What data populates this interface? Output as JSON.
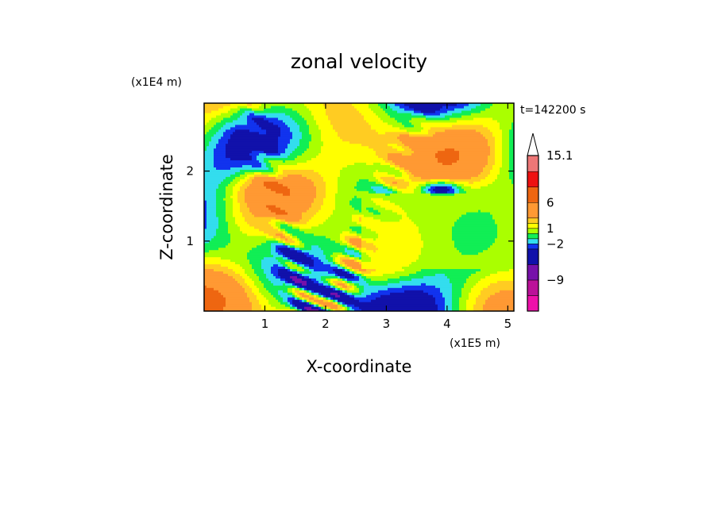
{
  "chart_data": {
    "type": "heatmap",
    "title": "zonal velocity",
    "xlabel": "X-coordinate",
    "ylabel": "Z-coordinate",
    "x_scale_note": "(x1E5 m)",
    "y_scale_note": "(x1E4 m)",
    "time_label": "t=142200 s",
    "xlim": [
      0,
      5.1
    ],
    "ylim": [
      0,
      2.97
    ],
    "x_ticks": [
      1,
      2,
      3,
      4,
      5
    ],
    "x_tick_labels": [
      "1",
      "2",
      "3",
      "4",
      "5"
    ],
    "y_ticks": [
      1,
      2
    ],
    "y_tick_labels": [
      "1",
      "2"
    ],
    "colorbar": {
      "levels_bottom_to_top": [
        -15,
        -12,
        -9,
        -6,
        -3,
        -2,
        -1,
        0,
        1,
        2,
        3,
        6,
        9,
        12,
        15.1
      ],
      "colors_bottom_to_top": [
        "#ee11aa",
        "#bb1199",
        "#7711aa",
        "#1111aa",
        "#1133ee",
        "#33ddee",
        "#11ee55",
        "#aaff00",
        "#ffff00",
        "#ffcc22",
        "#ff9933",
        "#ee6611",
        "#ee1111",
        "#ee7777",
        "#ffbbbb"
      ],
      "tick_labels": [
        "15.1",
        "6",
        "1",
        "−2",
        "−9"
      ],
      "tick_values": [
        15.1,
        6,
        1,
        -2,
        -9
      ],
      "extend": "max"
    }
  }
}
